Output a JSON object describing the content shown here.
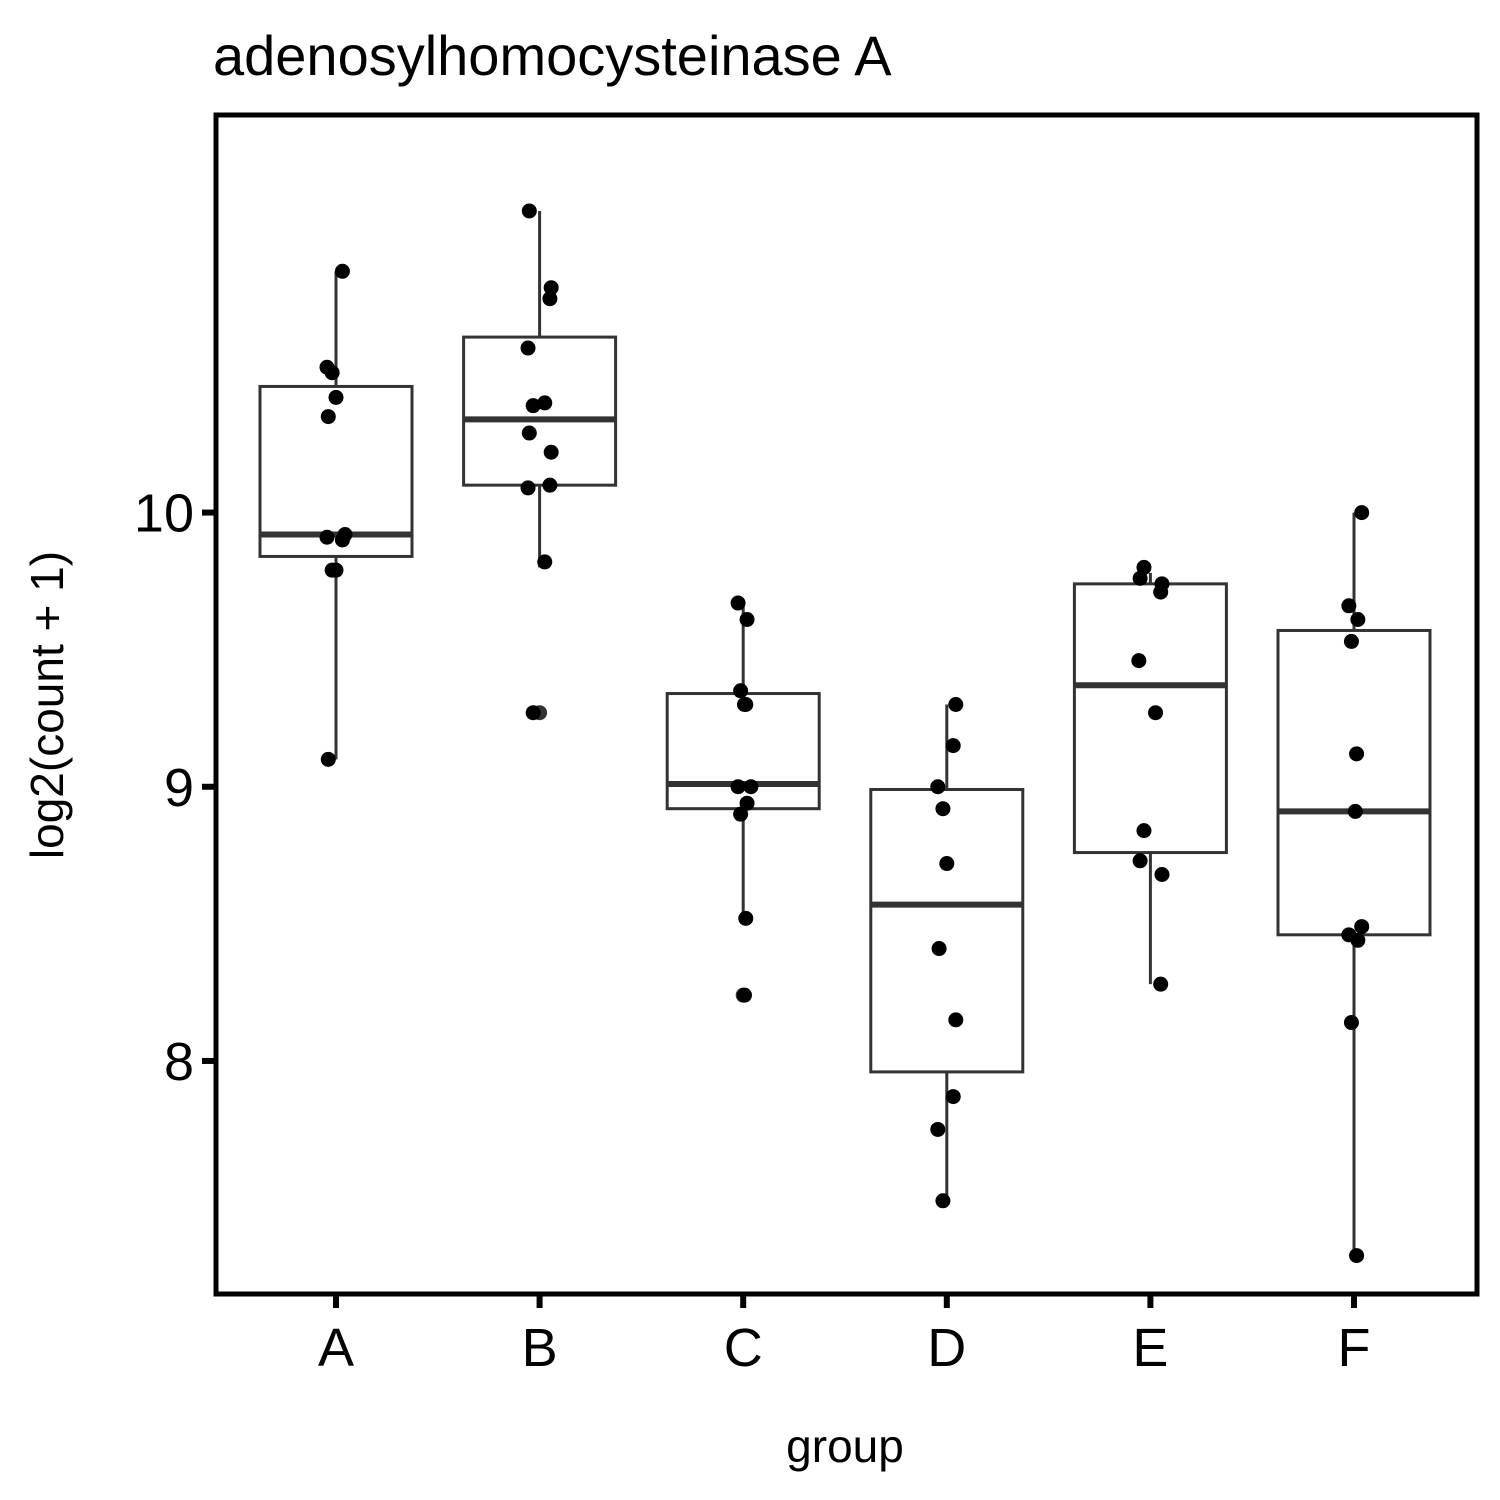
{
  "chart_data": {
    "type": "box",
    "title": "adenosylhomocysteinase A",
    "xlabel": "group",
    "ylabel": "log2(count + 1)",
    "ylim": [
      7.15,
      11.45
    ],
    "yticks": [
      8,
      9,
      10
    ],
    "categories": [
      "A",
      "B",
      "C",
      "D",
      "E",
      "F"
    ],
    "boxes": [
      {
        "group": "A",
        "whisker_low": 9.1,
        "q1": 9.84,
        "median": 9.92,
        "q3": 10.46,
        "whisker_high": 10.88
      },
      {
        "group": "B",
        "whisker_low": 9.8,
        "q1": 10.1,
        "median": 10.34,
        "q3": 10.64,
        "whisker_high": 11.1
      },
      {
        "group": "C",
        "whisker_low": 8.52,
        "q1": 8.92,
        "median": 9.01,
        "q3": 9.34,
        "whisker_high": 9.67
      },
      {
        "group": "D",
        "whisker_low": 7.49,
        "q1": 7.96,
        "median": 8.57,
        "q3": 8.99,
        "whisker_high": 9.3
      },
      {
        "group": "E",
        "whisker_low": 8.28,
        "q1": 8.76,
        "median": 9.37,
        "q3": 9.74,
        "whisker_high": 9.78
      },
      {
        "group": "F",
        "whisker_low": 7.29,
        "q1": 8.46,
        "median": 8.91,
        "q3": 9.57,
        "whisker_high": 10.0
      }
    ],
    "outliers": [
      {
        "group": "B",
        "y": 9.27
      },
      {
        "group": "C",
        "y": 8.24
      }
    ],
    "points": [
      {
        "group": "A",
        "y": 10.88
      },
      {
        "group": "A",
        "y": 10.53
      },
      {
        "group": "A",
        "y": 10.51
      },
      {
        "group": "A",
        "y": 10.42
      },
      {
        "group": "A",
        "y": 10.35
      },
      {
        "group": "A",
        "y": 9.92
      },
      {
        "group": "A",
        "y": 9.9
      },
      {
        "group": "A",
        "y": 9.91
      },
      {
        "group": "A",
        "y": 9.79
      },
      {
        "group": "A",
        "y": 9.79
      },
      {
        "group": "A",
        "y": 9.1
      },
      {
        "group": "B",
        "y": 11.1
      },
      {
        "group": "B",
        "y": 10.82
      },
      {
        "group": "B",
        "y": 10.78
      },
      {
        "group": "B",
        "y": 10.6
      },
      {
        "group": "B",
        "y": 10.4
      },
      {
        "group": "B",
        "y": 10.39
      },
      {
        "group": "B",
        "y": 10.29
      },
      {
        "group": "B",
        "y": 10.22
      },
      {
        "group": "B",
        "y": 10.1
      },
      {
        "group": "B",
        "y": 10.09
      },
      {
        "group": "B",
        "y": 9.82
      },
      {
        "group": "B",
        "y": 9.27
      },
      {
        "group": "C",
        "y": 9.67
      },
      {
        "group": "C",
        "y": 9.61
      },
      {
        "group": "C",
        "y": 9.35
      },
      {
        "group": "C",
        "y": 9.3
      },
      {
        "group": "C",
        "y": 9.3
      },
      {
        "group": "C",
        "y": 9.0
      },
      {
        "group": "C",
        "y": 9.0
      },
      {
        "group": "C",
        "y": 8.94
      },
      {
        "group": "C",
        "y": 8.9
      },
      {
        "group": "C",
        "y": 8.52
      },
      {
        "group": "C",
        "y": 8.24
      },
      {
        "group": "D",
        "y": 9.3
      },
      {
        "group": "D",
        "y": 9.15
      },
      {
        "group": "D",
        "y": 9.0
      },
      {
        "group": "D",
        "y": 8.92
      },
      {
        "group": "D",
        "y": 8.72
      },
      {
        "group": "D",
        "y": 8.41
      },
      {
        "group": "D",
        "y": 8.15
      },
      {
        "group": "D",
        "y": 7.87
      },
      {
        "group": "D",
        "y": 7.75
      },
      {
        "group": "D",
        "y": 7.49
      },
      {
        "group": "E",
        "y": 9.8
      },
      {
        "group": "E",
        "y": 9.76
      },
      {
        "group": "E",
        "y": 9.74
      },
      {
        "group": "E",
        "y": 9.71
      },
      {
        "group": "E",
        "y": 9.46
      },
      {
        "group": "E",
        "y": 9.27
      },
      {
        "group": "E",
        "y": 8.84
      },
      {
        "group": "E",
        "y": 8.73
      },
      {
        "group": "E",
        "y": 8.68
      },
      {
        "group": "E",
        "y": 8.28
      },
      {
        "group": "F",
        "y": 10.0
      },
      {
        "group": "F",
        "y": 9.66
      },
      {
        "group": "F",
        "y": 9.61
      },
      {
        "group": "F",
        "y": 9.53
      },
      {
        "group": "F",
        "y": 9.12
      },
      {
        "group": "F",
        "y": 8.91
      },
      {
        "group": "F",
        "y": 8.49
      },
      {
        "group": "F",
        "y": 8.46
      },
      {
        "group": "F",
        "y": 8.44
      },
      {
        "group": "F",
        "y": 8.14
      },
      {
        "group": "F",
        "y": 7.29
      }
    ],
    "colors": {
      "box": "#333333",
      "point": "#000000",
      "panel_border": "#000000"
    },
    "grid": false
  }
}
